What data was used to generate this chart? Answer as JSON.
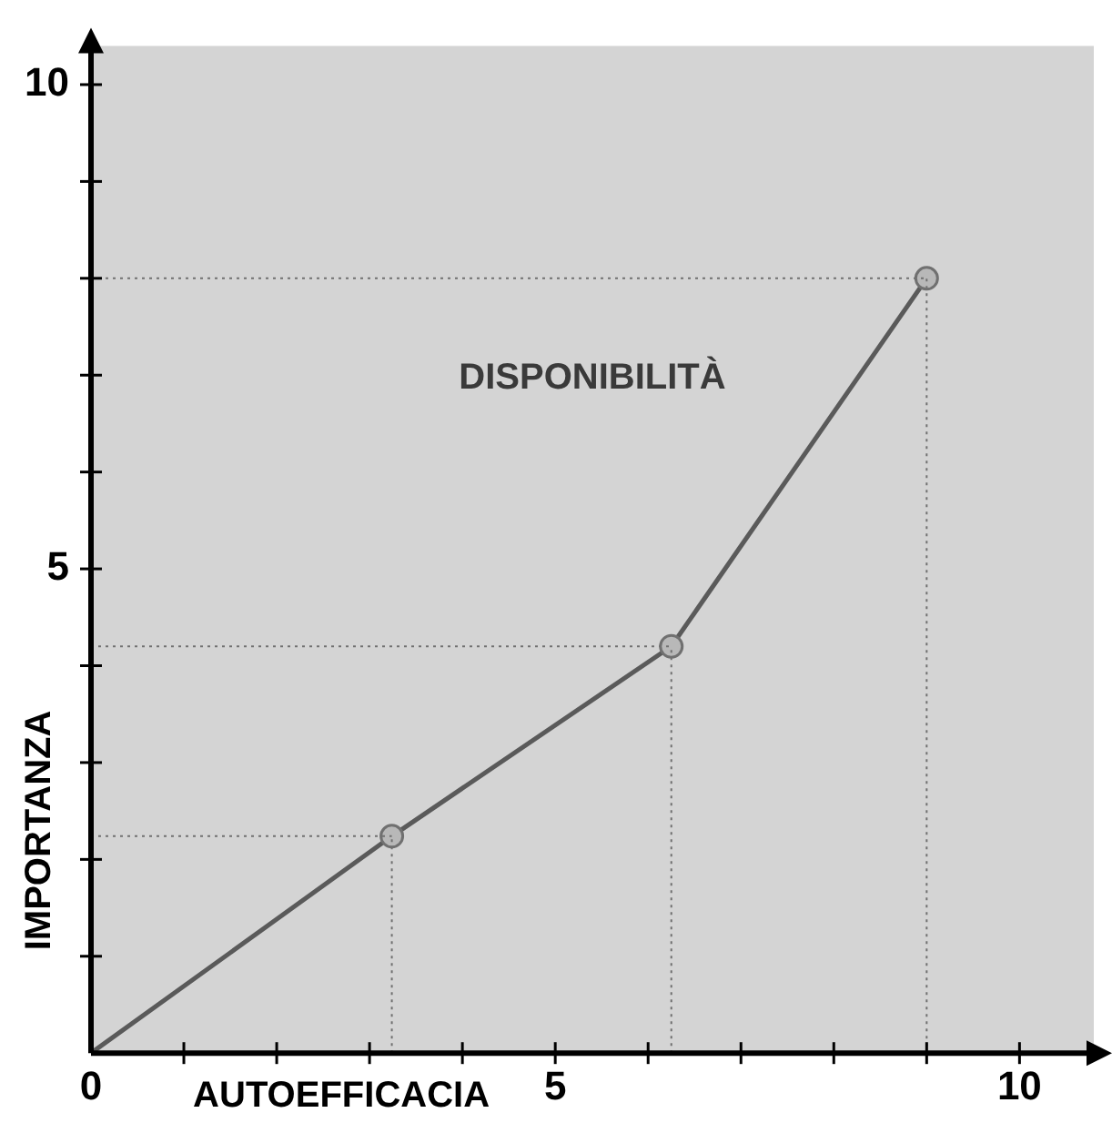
{
  "chart_data": {
    "type": "line",
    "xlabel": "AUTOEFFICACIA",
    "ylabel": "IMPORTANZA",
    "annotations": [
      "DISPONIBILITÀ"
    ],
    "x": [
      0,
      3.24,
      6.25,
      9
    ],
    "series": [
      {
        "color": "#5a5a5a",
        "values": [
          0,
          2.24,
          4.2,
          8
        ]
      }
    ],
    "ref_lines": [
      {
        "axis": "y",
        "value": 2.24,
        "color": "#707070",
        "line_style": "dotted"
      },
      {
        "axis": "y",
        "value": 4.2,
        "color": "#707070",
        "line_style": "dotted"
      },
      {
        "axis": "y",
        "value": 8,
        "color": "#707070",
        "line_style": "dotted"
      },
      {
        "axis": "x",
        "value": 3.24,
        "color": "#707070",
        "line_style": "dotted"
      },
      {
        "axis": "x",
        "value": 6.25,
        "color": "#707070",
        "line_style": "dotted"
      },
      {
        "axis": "x",
        "value": 9,
        "color": "#707070",
        "line_style": "dotted"
      }
    ],
    "marker": "circle",
    "line_style": "solid",
    "grid": false,
    "legend": false,
    "xlim": [
      0,
      10.8
    ],
    "ylim": [
      0,
      10.4
    ],
    "xticks": [
      0,
      {
        "value": 1,
        "label": null
      },
      {
        "value": 2,
        "label": null
      },
      {
        "value": 3,
        "label": null
      },
      {
        "value": 4,
        "label": null
      },
      5,
      {
        "value": 6,
        "label": null
      },
      {
        "value": 7,
        "label": null
      },
      {
        "value": 8,
        "label": null
      },
      {
        "value": 9,
        "label": null
      },
      10
    ],
    "yticks": [
      {
        "value": 0,
        "label": null
      },
      {
        "value": 1,
        "label": null
      },
      {
        "value": 2,
        "label": null
      },
      {
        "value": 3,
        "label": null
      },
      {
        "value": 4,
        "label": null
      },
      5,
      {
        "value": 6,
        "label": null
      },
      {
        "value": 7,
        "label": null
      },
      {
        "value": 8,
        "label": null
      },
      {
        "value": 9,
        "label": null
      },
      10
    ]
  }
}
